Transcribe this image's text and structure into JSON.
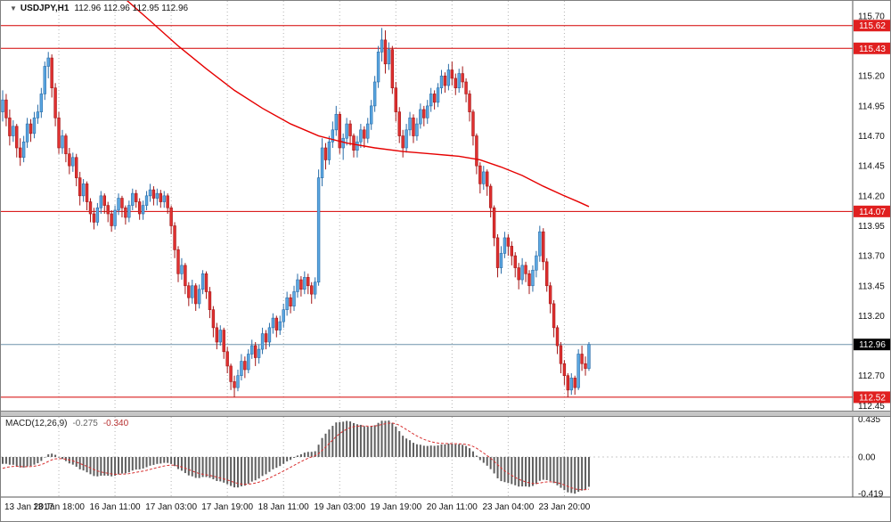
{
  "header": {
    "arrow_glyph": "▼",
    "symbol": "USDJPY,H1",
    "ohlc_values": "112.96 112.96 112.95 112.96"
  },
  "macd_label": {
    "name": "MACD(12,26,9)",
    "main": "-0.275",
    "signal": "-0.340"
  },
  "colors": {
    "bull": "#5ba7e2",
    "bull_stroke": "#2a6da8",
    "bear": "#e03030",
    "bear_stroke": "#a31717",
    "ma": "#e60000",
    "hline": "#d40000",
    "badge_red": "#e02020",
    "badge_black": "#000000",
    "current_line": "#6f93ab",
    "histogram": "#5f5f5f",
    "signal": "#d83030"
  },
  "chart_data": {
    "type": "candlestick",
    "symbol": "USDJPY",
    "timeframe": "H1",
    "title": "USDJPY,H1",
    "y_axis": {
      "max": 115.826,
      "min": 112.408,
      "ticks": [
        "115.70",
        "115.45",
        "115.20",
        "114.95",
        "114.70",
        "114.45",
        "114.20",
        "113.95",
        "113.70",
        "113.45",
        "113.20",
        "112.95",
        "112.70",
        "112.45"
      ]
    },
    "x_axis": {
      "bars_per_grid": 16,
      "labels": [
        "13 Jan 2017",
        "13 Jan 18:00",
        "16 Jan 11:00",
        "17 Jan 03:00",
        "17 Jan 19:00",
        "18 Jan 11:00",
        "19 Jan 03:00",
        "19 Jan 19:00",
        "20 Jan 11:00",
        "23 Jan 04:00",
        "23 Jan 20:00"
      ]
    },
    "horizontal_lines": [
      {
        "price": 115.62,
        "label": "115.62"
      },
      {
        "price": 115.43,
        "label": "115.43"
      },
      {
        "price": 114.07,
        "label": "114.07"
      },
      {
        "price": 112.52,
        "label": "112.52"
      }
    ],
    "current_price": {
      "price": 112.96,
      "label": "112.96"
    },
    "ma_line": {
      "points": [
        [
          35,
          115.84
        ],
        [
          42,
          115.66
        ],
        [
          50,
          115.45
        ],
        [
          58,
          115.26
        ],
        [
          66,
          115.08
        ],
        [
          74,
          114.93
        ],
        [
          82,
          114.8
        ],
        [
          90,
          114.7
        ],
        [
          98,
          114.64
        ],
        [
          106,
          114.6
        ],
        [
          114,
          114.57
        ],
        [
          122,
          114.55
        ],
        [
          130,
          114.53
        ],
        [
          136,
          114.5
        ],
        [
          142,
          114.44
        ],
        [
          148,
          114.37
        ],
        [
          154,
          114.28
        ],
        [
          160,
          114.2
        ],
        [
          164,
          114.15
        ],
        [
          167,
          114.11
        ]
      ]
    },
    "macd": {
      "params": "12,26,9",
      "max": 0.46,
      "min": -0.46,
      "ticks": [
        {
          "label": "0.435",
          "value": 0.435
        },
        {
          "label": "0.00",
          "value": 0
        },
        {
          "label": "-0.419",
          "value": -0.419
        }
      ]
    },
    "macd_warmup_closes": [
      115.6,
      115.5,
      115.4,
      115.3,
      115.2,
      115.1,
      115.0,
      114.9,
      114.8,
      114.72,
      114.65,
      114.6,
      114.58,
      114.6,
      114.65,
      114.72,
      114.8,
      114.85,
      114.9,
      114.92,
      114.95,
      114.96,
      114.95,
      114.93,
      114.92
    ],
    "candles": [
      [
        114.9,
        115.08,
        114.82,
        115.0
      ],
      [
        115.0,
        115.05,
        114.78,
        114.85
      ],
      [
        114.85,
        114.92,
        114.62,
        114.7
      ],
      [
        114.7,
        114.83,
        114.65,
        114.78
      ],
      [
        114.78,
        114.8,
        114.52,
        114.6
      ],
      [
        114.6,
        114.68,
        114.45,
        114.52
      ],
      [
        114.52,
        114.7,
        114.48,
        114.65
      ],
      [
        114.65,
        114.85,
        114.6,
        114.8
      ],
      [
        114.8,
        114.84,
        114.65,
        114.72
      ],
      [
        114.72,
        114.9,
        114.68,
        114.85
      ],
      [
        114.85,
        114.96,
        114.8,
        114.9
      ],
      [
        114.9,
        115.1,
        114.85,
        115.05
      ],
      [
        115.05,
        115.32,
        115.0,
        115.28
      ],
      [
        115.28,
        115.4,
        115.18,
        115.35
      ],
      [
        115.35,
        115.38,
        115.02,
        115.1
      ],
      [
        115.1,
        115.14,
        114.78,
        114.85
      ],
      [
        114.85,
        114.9,
        114.55,
        114.6
      ],
      [
        114.6,
        114.75,
        114.55,
        114.7
      ],
      [
        114.7,
        114.72,
        114.48,
        114.55
      ],
      [
        114.55,
        114.6,
        114.38,
        114.45
      ],
      [
        114.45,
        114.56,
        114.4,
        114.52
      ],
      [
        114.52,
        114.55,
        114.28,
        114.35
      ],
      [
        114.35,
        114.4,
        114.12,
        114.2
      ],
      [
        114.2,
        114.34,
        114.15,
        114.3
      ],
      [
        114.3,
        114.32,
        114.08,
        114.15
      ],
      [
        114.15,
        114.18,
        113.98,
        114.05
      ],
      [
        114.05,
        114.1,
        113.92,
        113.98
      ],
      [
        113.98,
        114.14,
        113.95,
        114.1
      ],
      [
        114.1,
        114.24,
        114.05,
        114.2
      ],
      [
        114.2,
        114.22,
        114.05,
        114.12
      ],
      [
        114.12,
        114.15,
        113.98,
        114.05
      ],
      [
        114.05,
        114.08,
        113.9,
        113.95
      ],
      [
        113.95,
        114.12,
        113.92,
        114.08
      ],
      [
        114.08,
        114.22,
        114.04,
        114.18
      ],
      [
        114.18,
        114.2,
        114.02,
        114.1
      ],
      [
        114.1,
        114.12,
        113.96,
        114.02
      ],
      [
        114.02,
        114.16,
        113.98,
        114.12
      ],
      [
        114.12,
        114.26,
        114.08,
        114.22
      ],
      [
        114.22,
        114.25,
        114.1,
        114.15
      ],
      [
        114.15,
        114.18,
        114.0,
        114.05
      ],
      [
        114.05,
        114.16,
        114.0,
        114.12
      ],
      [
        114.12,
        114.24,
        114.08,
        114.2
      ],
      [
        114.2,
        114.3,
        114.15,
        114.25
      ],
      [
        114.25,
        114.28,
        114.12,
        114.18
      ],
      [
        114.18,
        114.26,
        114.12,
        114.22
      ],
      [
        114.22,
        114.25,
        114.1,
        114.15
      ],
      [
        114.15,
        114.24,
        114.1,
        114.2
      ],
      [
        114.2,
        114.22,
        114.05,
        114.1
      ],
      [
        114.1,
        114.12,
        113.88,
        113.95
      ],
      [
        113.95,
        113.98,
        113.68,
        113.75
      ],
      [
        113.75,
        113.78,
        113.48,
        113.55
      ],
      [
        113.55,
        113.68,
        113.5,
        113.62
      ],
      [
        113.62,
        113.64,
        113.38,
        113.45
      ],
      [
        113.45,
        113.48,
        113.28,
        113.35
      ],
      [
        113.35,
        113.5,
        113.3,
        113.45
      ],
      [
        113.45,
        113.47,
        113.24,
        113.3
      ],
      [
        113.3,
        113.46,
        113.26,
        113.42
      ],
      [
        113.42,
        113.58,
        113.38,
        113.55
      ],
      [
        113.55,
        113.57,
        113.34,
        113.4
      ],
      [
        113.4,
        113.44,
        113.18,
        113.25
      ],
      [
        113.25,
        113.28,
        113.02,
        113.1
      ],
      [
        113.1,
        113.14,
        112.92,
        112.98
      ],
      [
        112.98,
        113.12,
        112.95,
        113.08
      ],
      [
        113.08,
        113.1,
        112.84,
        112.9
      ],
      [
        112.9,
        112.94,
        112.72,
        112.78
      ],
      [
        112.78,
        112.8,
        112.58,
        112.65
      ],
      [
        112.65,
        112.7,
        112.52,
        112.6
      ],
      [
        112.6,
        112.75,
        112.57,
        112.7
      ],
      [
        112.7,
        112.88,
        112.66,
        112.82
      ],
      [
        112.82,
        112.86,
        112.68,
        112.75
      ],
      [
        112.75,
        112.92,
        112.72,
        112.88
      ],
      [
        112.88,
        113.0,
        112.84,
        112.95
      ],
      [
        112.95,
        112.98,
        112.78,
        112.85
      ],
      [
        112.85,
        112.96,
        112.8,
        112.92
      ],
      [
        112.92,
        113.1,
        112.88,
        113.05
      ],
      [
        113.05,
        113.08,
        112.92,
        112.98
      ],
      [
        112.98,
        113.14,
        112.94,
        113.1
      ],
      [
        113.1,
        113.22,
        113.05,
        113.18
      ],
      [
        113.18,
        113.2,
        113.02,
        113.08
      ],
      [
        113.08,
        113.2,
        113.04,
        113.15
      ],
      [
        113.15,
        113.3,
        113.1,
        113.25
      ],
      [
        113.25,
        113.4,
        113.2,
        113.35
      ],
      [
        113.35,
        113.38,
        113.22,
        113.28
      ],
      [
        113.28,
        113.45,
        113.24,
        113.4
      ],
      [
        113.4,
        113.55,
        113.35,
        113.5
      ],
      [
        113.5,
        113.53,
        113.36,
        113.42
      ],
      [
        113.42,
        113.57,
        113.38,
        113.52
      ],
      [
        113.52,
        113.55,
        113.38,
        113.45
      ],
      [
        113.45,
        113.48,
        113.3,
        113.38
      ],
      [
        113.38,
        113.52,
        113.34,
        113.48
      ],
      [
        113.48,
        114.42,
        113.45,
        114.35
      ],
      [
        114.35,
        114.68,
        114.28,
        114.6
      ],
      [
        114.6,
        114.64,
        114.42,
        114.5
      ],
      [
        114.5,
        114.7,
        114.46,
        114.65
      ],
      [
        114.65,
        114.82,
        114.6,
        114.75
      ],
      [
        114.75,
        114.95,
        114.7,
        114.88
      ],
      [
        114.88,
        114.9,
        114.55,
        114.6
      ],
      [
        114.6,
        114.72,
        114.5,
        114.68
      ],
      [
        114.68,
        114.85,
        114.62,
        114.8
      ],
      [
        114.8,
        114.83,
        114.62,
        114.7
      ],
      [
        114.7,
        114.72,
        114.52,
        114.58
      ],
      [
        114.58,
        114.7,
        114.52,
        114.65
      ],
      [
        114.65,
        114.8,
        114.6,
        114.75
      ],
      [
        114.75,
        114.78,
        114.6,
        114.68
      ],
      [
        114.68,
        114.85,
        114.64,
        114.8
      ],
      [
        114.8,
        115.0,
        114.75,
        114.95
      ],
      [
        114.95,
        115.2,
        114.9,
        115.15
      ],
      [
        115.15,
        115.45,
        115.1,
        115.4
      ],
      [
        115.4,
        115.6,
        115.32,
        115.5
      ],
      [
        115.5,
        115.58,
        115.22,
        115.3
      ],
      [
        115.3,
        115.48,
        115.25,
        115.42
      ],
      [
        115.42,
        115.45,
        115.05,
        115.1
      ],
      [
        115.1,
        115.15,
        114.82,
        114.9
      ],
      [
        114.9,
        114.94,
        114.64,
        114.7
      ],
      [
        114.7,
        114.75,
        114.52,
        114.6
      ],
      [
        114.6,
        114.8,
        114.56,
        114.75
      ],
      [
        114.75,
        114.9,
        114.7,
        114.85
      ],
      [
        114.85,
        114.88,
        114.64,
        114.7
      ],
      [
        114.7,
        114.85,
        114.66,
        114.8
      ],
      [
        114.8,
        114.97,
        114.76,
        114.92
      ],
      [
        114.92,
        114.95,
        114.78,
        114.85
      ],
      [
        114.85,
        115.0,
        114.8,
        114.95
      ],
      [
        114.95,
        115.1,
        114.9,
        115.05
      ],
      [
        115.05,
        115.08,
        114.92,
        114.98
      ],
      [
        114.98,
        115.14,
        114.94,
        115.1
      ],
      [
        115.1,
        115.25,
        115.05,
        115.2
      ],
      [
        115.2,
        115.23,
        115.06,
        115.12
      ],
      [
        115.12,
        115.3,
        115.08,
        115.25
      ],
      [
        115.25,
        115.32,
        115.12,
        115.18
      ],
      [
        115.18,
        115.22,
        115.04,
        115.1
      ],
      [
        115.1,
        115.26,
        115.06,
        115.22
      ],
      [
        115.22,
        115.28,
        115.1,
        115.15
      ],
      [
        115.15,
        115.18,
        114.98,
        115.05
      ],
      [
        115.05,
        115.08,
        114.82,
        114.9
      ],
      [
        114.9,
        114.92,
        114.62,
        114.7
      ],
      [
        114.7,
        114.72,
        114.38,
        114.45
      ],
      [
        114.45,
        114.48,
        114.22,
        114.3
      ],
      [
        114.3,
        114.45,
        114.25,
        114.4
      ],
      [
        114.4,
        114.42,
        114.2,
        114.28
      ],
      [
        114.28,
        114.3,
        114.02,
        114.1
      ],
      [
        114.1,
        114.12,
        113.78,
        113.85
      ],
      [
        113.85,
        113.88,
        113.52,
        113.6
      ],
      [
        113.6,
        113.78,
        113.55,
        113.72
      ],
      [
        113.72,
        113.9,
        113.68,
        113.85
      ],
      [
        113.85,
        113.88,
        113.7,
        113.78
      ],
      [
        113.78,
        113.82,
        113.62,
        113.7
      ],
      [
        113.7,
        113.73,
        113.52,
        113.6
      ],
      [
        113.6,
        113.64,
        113.42,
        113.5
      ],
      [
        113.5,
        113.68,
        113.46,
        113.62
      ],
      [
        113.62,
        113.65,
        113.48,
        113.55
      ],
      [
        113.55,
        113.58,
        113.38,
        113.45
      ],
      [
        113.45,
        113.62,
        113.4,
        113.58
      ],
      [
        113.58,
        113.74,
        113.52,
        113.7
      ],
      [
        113.7,
        113.95,
        113.65,
        113.9
      ],
      [
        113.9,
        113.93,
        113.58,
        113.65
      ],
      [
        113.65,
        113.68,
        113.4,
        113.45
      ],
      [
        113.45,
        113.48,
        113.22,
        113.3
      ],
      [
        113.3,
        113.33,
        113.02,
        113.1
      ],
      [
        113.1,
        113.12,
        112.88,
        112.95
      ],
      [
        112.95,
        112.98,
        112.72,
        112.8
      ],
      [
        112.8,
        112.83,
        112.62,
        112.7
      ],
      [
        112.7,
        112.72,
        112.52,
        112.58
      ],
      [
        112.58,
        112.72,
        112.54,
        112.68
      ],
      [
        112.68,
        112.7,
        112.54,
        112.6
      ],
      [
        112.6,
        112.92,
        112.58,
        112.88
      ],
      [
        112.88,
        112.95,
        112.74,
        112.8
      ],
      [
        112.8,
        112.86,
        112.7,
        112.76
      ],
      [
        112.76,
        112.98,
        112.74,
        112.96
      ]
    ]
  }
}
